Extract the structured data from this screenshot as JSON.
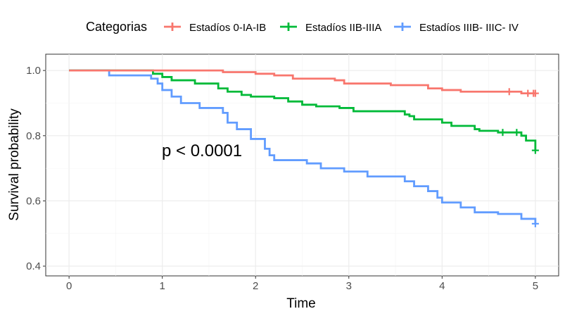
{
  "chart_data": {
    "type": "line",
    "subtype": "kaplan-meier survival curve",
    "xlabel": "Time",
    "ylabel": "Survival probability",
    "xlim": [
      -0.25,
      5.25
    ],
    "ylim": [
      0.37,
      1.05
    ],
    "x_ticks": [
      0,
      1,
      2,
      3,
      4,
      5
    ],
    "y_ticks": [
      0.4,
      0.6,
      0.8,
      1.0
    ],
    "x_tick_labels": [
      "0",
      "1",
      "2",
      "3",
      "4",
      "5"
    ],
    "y_tick_labels": [
      "0.4",
      "0.6",
      "0.8",
      "1.0"
    ],
    "grid": true,
    "legend": {
      "title": "Categorias",
      "position": "top"
    },
    "annotation": "p < 0.0001",
    "series": [
      {
        "name": "Estadíos 0-IA-IB",
        "color": "#F8766D",
        "steps": [
          [
            0,
            1.0
          ],
          [
            1.65,
            0.995
          ],
          [
            2.0,
            0.99
          ],
          [
            2.2,
            0.985
          ],
          [
            2.4,
            0.975
          ],
          [
            2.85,
            0.97
          ],
          [
            2.95,
            0.96
          ],
          [
            3.45,
            0.955
          ],
          [
            3.75,
            0.955
          ],
          [
            3.85,
            0.945
          ],
          [
            4.0,
            0.94
          ],
          [
            4.2,
            0.935
          ],
          [
            4.85,
            0.93
          ],
          [
            5.0,
            0.93
          ]
        ],
        "censor_times": [
          4.72,
          4.92,
          4.98,
          5.0
        ]
      },
      {
        "name": "Estadíos IIB-IIIA",
        "color": "#00BA38",
        "steps": [
          [
            0,
            1.0
          ],
          [
            0.9,
            0.99
          ],
          [
            1.0,
            0.98
          ],
          [
            1.1,
            0.97
          ],
          [
            1.35,
            0.96
          ],
          [
            1.6,
            0.945
          ],
          [
            1.7,
            0.935
          ],
          [
            1.85,
            0.925
          ],
          [
            1.95,
            0.92
          ],
          [
            2.2,
            0.915
          ],
          [
            2.35,
            0.905
          ],
          [
            2.5,
            0.895
          ],
          [
            2.65,
            0.89
          ],
          [
            2.9,
            0.885
          ],
          [
            3.05,
            0.875
          ],
          [
            3.6,
            0.865
          ],
          [
            3.65,
            0.86
          ],
          [
            3.7,
            0.85
          ],
          [
            4.0,
            0.84
          ],
          [
            4.1,
            0.83
          ],
          [
            4.35,
            0.82
          ],
          [
            4.4,
            0.815
          ],
          [
            4.6,
            0.81
          ],
          [
            4.85,
            0.8
          ],
          [
            4.9,
            0.785
          ],
          [
            5.0,
            0.775
          ],
          [
            5.0,
            0.755
          ]
        ],
        "censor_times": [
          4.65,
          4.8,
          5.0
        ]
      },
      {
        "name": "Estadíos IIIB- IIIC- IV",
        "color": "#619CFF",
        "steps": [
          [
            0,
            1.0
          ],
          [
            0.43,
            0.985
          ],
          [
            0.88,
            0.975
          ],
          [
            0.95,
            0.96
          ],
          [
            1.0,
            0.94
          ],
          [
            1.1,
            0.92
          ],
          [
            1.2,
            0.9
          ],
          [
            1.4,
            0.885
          ],
          [
            1.65,
            0.87
          ],
          [
            1.7,
            0.84
          ],
          [
            1.8,
            0.82
          ],
          [
            1.95,
            0.79
          ],
          [
            2.1,
            0.76
          ],
          [
            2.15,
            0.74
          ],
          [
            2.2,
            0.725
          ],
          [
            2.55,
            0.715
          ],
          [
            2.7,
            0.7
          ],
          [
            2.95,
            0.69
          ],
          [
            3.2,
            0.675
          ],
          [
            3.6,
            0.66
          ],
          [
            3.7,
            0.645
          ],
          [
            3.85,
            0.63
          ],
          [
            3.95,
            0.61
          ],
          [
            4.0,
            0.595
          ],
          [
            4.2,
            0.58
          ],
          [
            4.35,
            0.565
          ],
          [
            4.6,
            0.56
          ],
          [
            4.85,
            0.545
          ],
          [
            5.0,
            0.53
          ]
        ],
        "censor_times": [
          5.0
        ]
      }
    ]
  }
}
